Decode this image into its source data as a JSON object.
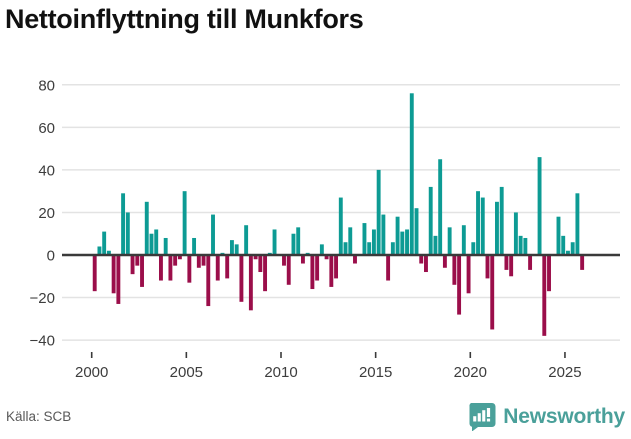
{
  "title": "Nettoinflyttning till Munkfors",
  "footer": {
    "source": "Källa: SCB",
    "brand": "Newsworthy"
  },
  "colors": {
    "positive": "#0d9b94",
    "negative": "#9b0e4a",
    "grid": "#e3e3e3",
    "zero_line": "#3a3a3a",
    "axis_text": "#3d3d3d",
    "title_text": "#111111",
    "source_text": "#595959",
    "brand": "#4aa09a"
  },
  "chart_data": {
    "type": "bar",
    "title": "Nettoinflyttning till Munkfors",
    "frequency": "quarterly",
    "grid": true,
    "x_axis": {
      "tick_labels": [
        "2000",
        "2005",
        "2010",
        "2015",
        "2020",
        "2025"
      ]
    },
    "y_axis": {
      "ticks": [
        80,
        60,
        40,
        20,
        0,
        -20,
        -40
      ],
      "tick_labels": [
        "80",
        "60",
        "40",
        "20",
        "0",
        "−20",
        "−40"
      ],
      "range": [
        -45,
        85
      ]
    },
    "series": [
      {
        "name": "Nettoinflyttning",
        "by_year": [
          {
            "year": 2000,
            "quarters": [
              -17,
              4,
              11,
              2
            ]
          },
          {
            "year": 2001,
            "quarters": [
              -18,
              -23,
              29,
              20
            ]
          },
          {
            "year": 2002,
            "quarters": [
              -9,
              -5,
              -15,
              25
            ]
          },
          {
            "year": 2003,
            "quarters": [
              10,
              12,
              -12,
              8
            ]
          },
          {
            "year": 2004,
            "quarters": [
              -12,
              -5,
              -2,
              30
            ]
          },
          {
            "year": 2005,
            "quarters": [
              -13,
              8,
              -6,
              -5
            ]
          },
          {
            "year": 2006,
            "quarters": [
              -24,
              19,
              -12,
              1
            ]
          },
          {
            "year": 2007,
            "quarters": [
              -11,
              7,
              5,
              -22
            ]
          },
          {
            "year": 2008,
            "quarters": [
              14,
              -26,
              -2,
              -8
            ]
          },
          {
            "year": 2009,
            "quarters": [
              -17,
              1,
              12,
              0
            ]
          },
          {
            "year": 2010,
            "quarters": [
              -5,
              -14,
              10,
              13
            ]
          },
          {
            "year": 2011,
            "quarters": [
              -4,
              1,
              -16,
              -12
            ]
          },
          {
            "year": 2012,
            "quarters": [
              5,
              -2,
              -15,
              -11
            ]
          },
          {
            "year": 2013,
            "quarters": [
              27,
              6,
              13,
              -4
            ]
          },
          {
            "year": 2014,
            "quarters": [
              0,
              15,
              6,
              12
            ]
          },
          {
            "year": 2015,
            "quarters": [
              40,
              19,
              -12,
              6
            ]
          },
          {
            "year": 2016,
            "quarters": [
              18,
              11,
              12,
              76
            ]
          },
          {
            "year": 2017,
            "quarters": [
              22,
              -4,
              -8,
              32
            ]
          },
          {
            "year": 2018,
            "quarters": [
              9,
              45,
              -6,
              13
            ]
          },
          {
            "year": 2019,
            "quarters": [
              -14,
              -28,
              14,
              -18
            ]
          },
          {
            "year": 2020,
            "quarters": [
              6,
              30,
              27,
              -11
            ]
          },
          {
            "year": 2021,
            "quarters": [
              -35,
              25,
              32,
              -7
            ]
          },
          {
            "year": 2022,
            "quarters": [
              -10,
              20,
              9,
              8
            ]
          },
          {
            "year": 2023,
            "quarters": [
              -7,
              0,
              46,
              -38
            ]
          },
          {
            "year": 2024,
            "quarters": [
              -17,
              0,
              18,
              9
            ]
          },
          {
            "year": 2025,
            "quarters": [
              2,
              6,
              29,
              -7
            ]
          }
        ]
      }
    ]
  }
}
